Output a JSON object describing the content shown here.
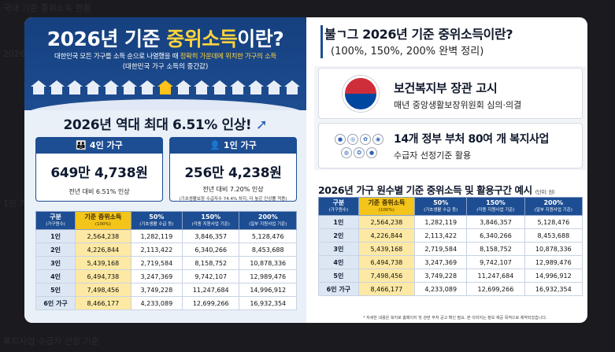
{
  "background_fragments": [
    "국내 기준 중위소득 현황",
    "2026년 기준 중위소득",
    "1인 가구",
    "복지사업 수급자 선정 기준"
  ],
  "left": {
    "title_year": "2026년 기준 ",
    "title_main": "중위소득",
    "title_end": "이란?",
    "subtitle_a": "대한민국 모든 가구를 소득 순으로 나열했을 때 ",
    "subtitle_b": "정확히 가운데에 위치한 가구의 소득",
    "subtitle2": "(대한민국 가구 소득의 중간값)",
    "houses_count": 15,
    "highlight_house_index": 7,
    "increase_text": "2026년 역대 최대 6.51% 인상!",
    "box4": {
      "label": "4인 가구",
      "amount": "649만 4,738원",
      "note": "전년 대비 6.51% 인상"
    },
    "box1": {
      "label": "1인 가구",
      "amount": "256만 4,238원",
      "note": "전년 대비 7.20% 인상",
      "note2": "(기초생활보장 수급자수 74.4% 차지, 더 높은 인상률 적용)"
    }
  },
  "table": {
    "headers": [
      {
        "label": "구분",
        "sub": "(가구원수)"
      },
      {
        "label": "기준 중위소득",
        "sub": "(100%)"
      },
      {
        "label": "50%",
        "sub": "(기초생활 수급 등)"
      },
      {
        "label": "150%",
        "sub": "(각종 지원사업 기준)"
      },
      {
        "label": "200%",
        "sub": "(일부 지원사업 기준)"
      }
    ],
    "rows": [
      [
        "1인",
        "2,564,238",
        "1,282,119",
        "3,846,357",
        "5,128,476"
      ],
      [
        "2인",
        "4,226,844",
        "2,113,422",
        "6,340,266",
        "8,453,688"
      ],
      [
        "3인",
        "5,439,168",
        "2,719,584",
        "8,158,752",
        "10,878,336"
      ],
      [
        "4인",
        "6,494,738",
        "3,247,369",
        "9,742,107",
        "12,989,476"
      ],
      [
        "5인",
        "7,498,456",
        "3,749,228",
        "11,247,684",
        "14,996,912"
      ],
      [
        "6인 가구",
        "8,466,177",
        "4,233,089",
        "12,699,266",
        "16,932,354"
      ]
    ]
  },
  "right": {
    "title": "불ㄱ그 2026년 기준 중위소득이란?",
    "subtitle": "(100%, 150%, 200% 완벽 정리)",
    "ministry_title": "보건복지부 장관 고시",
    "ministry_sub": "매년 중앙생활보장위원회 심의·의결",
    "programs_title": "14개 정부 부처 80여 개 복지사업",
    "programs_sub": "수급자 선정기준 활용",
    "table_title": "2026년 가구 원수별 기준 중위소득 및 활용구간 예시",
    "table_unit": "(단위: 원)",
    "footnote": "* 자세한 내용은 복지로 홈페이지 및 관련 부처 공고 확인 필요. 본 이미지는 정보 제공 목적으로 제작되었습니다."
  },
  "colors": {
    "navy": "#1d4d92",
    "gold": "#f3c419",
    "gold_light": "#fde9a4",
    "accent_yellow": "#ffd43b"
  }
}
